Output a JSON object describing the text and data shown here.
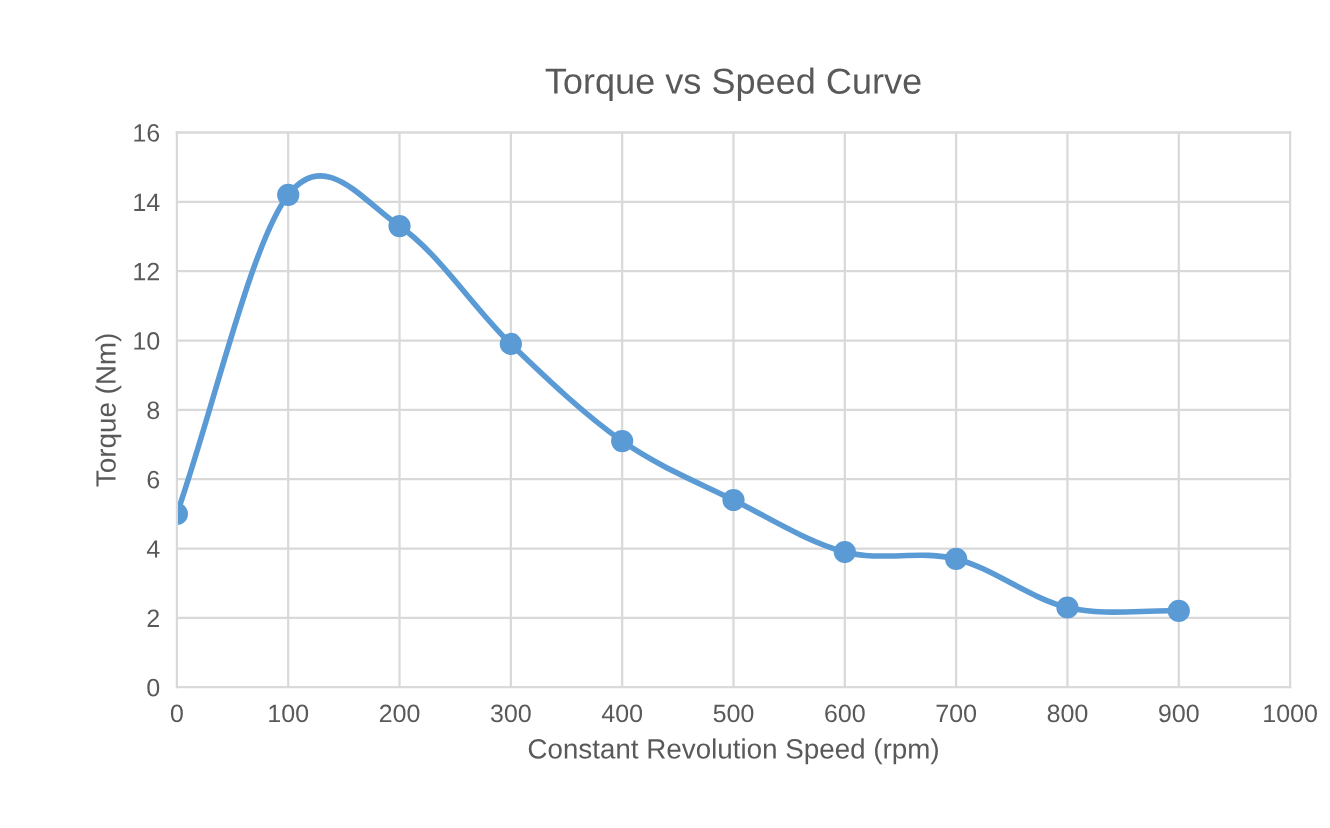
{
  "chart_data": {
    "type": "line",
    "title": "Torque vs Speed Curve",
    "xlabel": "Constant Revolution Speed (rpm)",
    "ylabel": "Torque (Nm)",
    "x": [
      0,
      100,
      200,
      300,
      400,
      500,
      600,
      700,
      800,
      900
    ],
    "series": [
      {
        "color": "#5b9bd5",
        "values": [
          5.0,
          14.2,
          13.3,
          9.9,
          7.1,
          5.4,
          3.9,
          3.7,
          2.3,
          2.2
        ]
      }
    ],
    "xlim": [
      0,
      1000
    ],
    "xticks": [
      0,
      100,
      200,
      300,
      400,
      500,
      600,
      700,
      800,
      900,
      1000
    ],
    "ylim": [
      0,
      16
    ],
    "yticks": [
      0,
      2,
      4,
      6,
      8,
      10,
      12,
      14,
      16
    ],
    "grid": true,
    "marker": "circle",
    "line_style": "solid",
    "legend": false
  }
}
